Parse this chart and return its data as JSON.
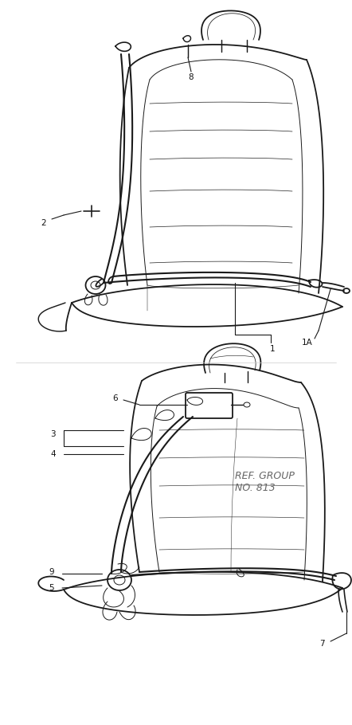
{
  "background_color": "#ffffff",
  "line_color": "#1a1a1a",
  "text_color": "#111111",
  "ref_text_color": "#666666",
  "figsize": [
    4.42,
    9.1
  ],
  "dpi": 100,
  "lw_seat": 1.3,
  "lw_belt": 1.5,
  "lw_thin": 0.7,
  "lw_label": 0.8,
  "font_size": 7.5
}
